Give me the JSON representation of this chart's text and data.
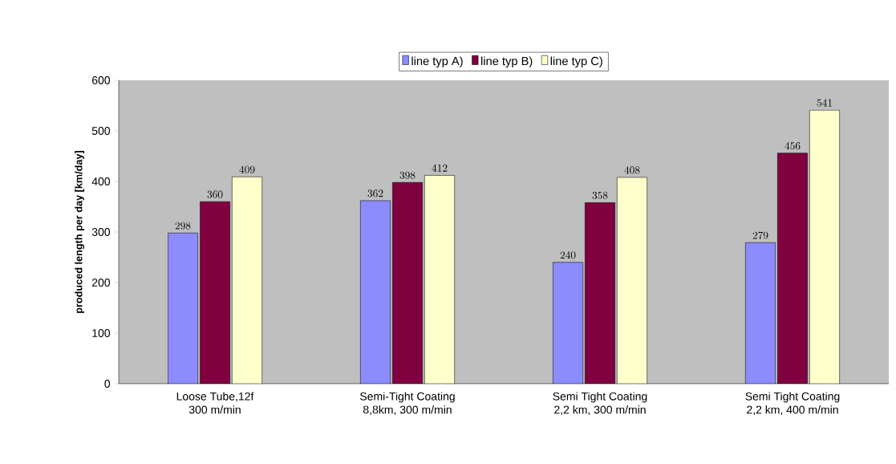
{
  "chart_data": {
    "type": "bar",
    "ylabel": "produced length  per day [km/day]",
    "categories": [
      "Loose Tube,12f\n300 m/min",
      "Semi-Tight Coating\n8,8km, 300 m/min",
      "Semi Tight Coating\n2,2 km, 300 m/min",
      "Semi Tight Coating\n2,2 km, 400 m/min"
    ],
    "series": [
      {
        "name": "line typ A)",
        "color": "#8c8cff",
        "values": [
          298,
          362,
          240,
          279
        ]
      },
      {
        "name": "line typ B)",
        "color": "#800040",
        "values": [
          360,
          398,
          358,
          456
        ]
      },
      {
        "name": "line typ C)",
        "color": "#ffffcc",
        "values": [
          409,
          412,
          408,
          541
        ]
      }
    ],
    "ylim": [
      0,
      600
    ],
    "yticks": [
      0,
      100,
      200,
      300,
      400,
      500,
      600
    ],
    "grid": false,
    "legend": "top",
    "data_labels": true
  }
}
